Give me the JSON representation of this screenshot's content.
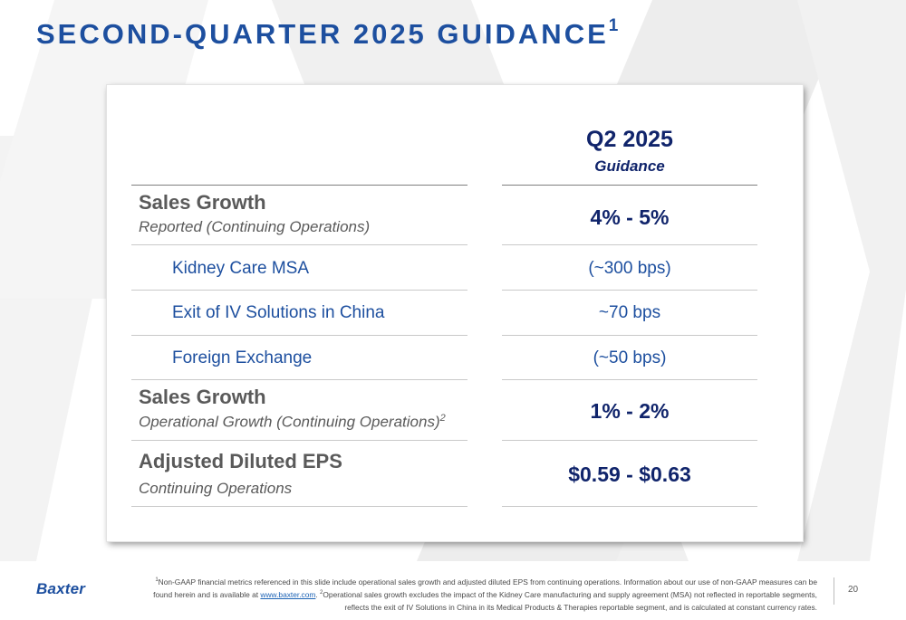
{
  "slide": {
    "title": "SECOND-QUARTER 2025 GUIDANCE",
    "title_superscript": "1"
  },
  "table": {
    "column_header": "Q2 2025",
    "column_subheader": "Guidance",
    "rows": [
      {
        "label": "Sales Growth",
        "sublabel": "Reported (Continuing Operations)",
        "value": "4% - 5%"
      },
      {
        "label": "Kidney Care MSA",
        "value": "(~300 bps)"
      },
      {
        "label": "Exit of IV Solutions in China",
        "value": "~70 bps"
      },
      {
        "label": "Foreign Exchange",
        "value": "(~50 bps)"
      },
      {
        "label": "Sales Growth",
        "sublabel": "Operational Growth (Continuing Operations)",
        "sublabel_superscript": "2",
        "value": "1% - 2%"
      },
      {
        "label": "Adjusted Diluted EPS",
        "sublabel": "Continuing Operations",
        "value": "$0.59 - $0.63"
      }
    ]
  },
  "footer": {
    "logo_text": "Baxter",
    "note_marker_1": "1",
    "note_text_1": "Non-GAAP financial metrics referenced in this slide include operational sales growth and adjusted diluted EPS from continuing operations. Information about our use of non-GAAP measures can be found herein and is available at ",
    "link_text": "www.baxter.com",
    "note_text_1_end": ". ",
    "note_marker_2": "2",
    "note_text_2": "Operational sales growth excludes the impact of the Kidney Care manufacturing and supply agreement (MSA) not reflected in reportable segments, reflects the exit of IV Solutions in China in its Medical Products & Therapies reportable segment, and is calculated at constant currency rates.",
    "page_number": "20"
  },
  "colors": {
    "brand_blue": "#1d4f9f",
    "navy": "#10246b",
    "label_gray": "#5a5a5a"
  }
}
